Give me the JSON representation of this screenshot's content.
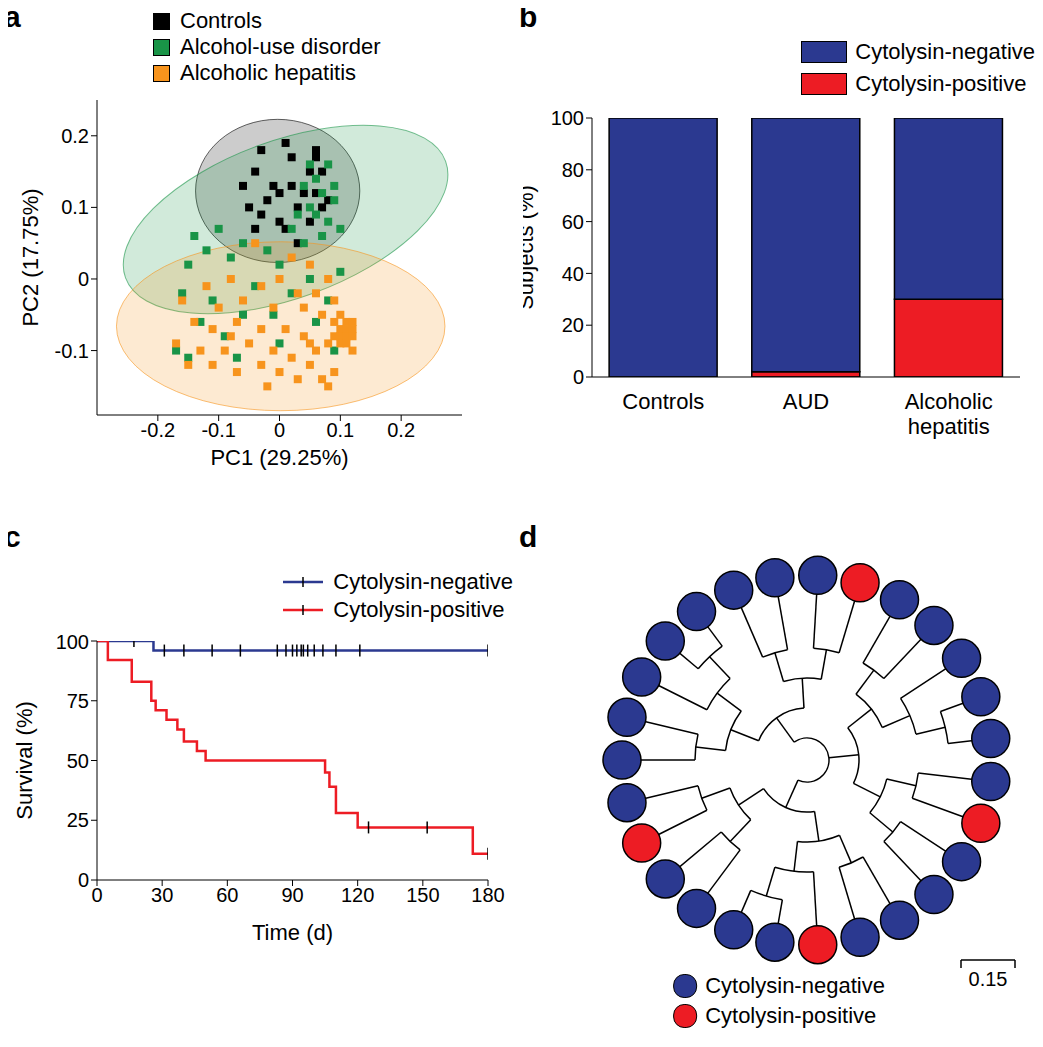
{
  "chart_data": [
    {
      "panel": "a",
      "type": "scatter",
      "marker": "square",
      "xlabel": "PC1 (29.25%)",
      "ylabel": "PC2 (17.75%)",
      "xlim": [
        -0.3,
        0.3
      ],
      "xticks": [
        -0.2,
        -0.1,
        0,
        0.1,
        0.2
      ],
      "ylim": [
        -0.19,
        0.25
      ],
      "yticks": [
        -0.1,
        0,
        0.1,
        0.2
      ],
      "legend": "upper left",
      "series": [
        {
          "name": "Controls",
          "color": "#000000",
          "x": [
            -0.03,
            0.01,
            0.02,
            0.06,
            0.07,
            0.05,
            -0.04,
            -0.06,
            -0.01,
            0,
            0.02,
            0.04,
            0.06,
            0.08,
            0.07,
            -0.05,
            -0.03,
            0,
            0.01,
            -0.04,
            0.03,
            0.05,
            -0.02,
            0.03,
            0.06
          ],
          "y": [
            0.18,
            0.19,
            0.17,
            0.18,
            0.15,
            0.15,
            0.15,
            0.13,
            0.13,
            0.12,
            0.13,
            0.12,
            0.12,
            0.11,
            0.1,
            0.1,
            0.09,
            0.08,
            0.07,
            0.07,
            0.05,
            0.08,
            0.11,
            0.1,
            0.17
          ],
          "ellipse": {
            "center": [
              -0.003,
              0.123
            ],
            "rx": 0.135,
            "ry": 0.1,
            "angle": 0
          }
        },
        {
          "name": "Alcohol-use disorder",
          "color": "#199447",
          "x": [
            0.05,
            0.08,
            0.06,
            0.09,
            0.04,
            0.07,
            0.09,
            0.05,
            0.03,
            0.06,
            0.08,
            0.02,
            0.1,
            0.07,
            0.04,
            -0.1,
            -0.14,
            -0.12,
            -0.08,
            -0.15,
            -0.06,
            -0.02,
            0,
            -0.16,
            -0.11,
            -0.04,
            0.05,
            0.1,
            0.08,
            -0.13,
            -0.09,
            -0.06,
            -0.01,
            0.02,
            -0.17,
            -0.15,
            -0.07,
            0,
            0.06,
            0.09
          ],
          "y": [
            0.16,
            0.16,
            0.14,
            0.13,
            0.13,
            0.12,
            0.11,
            0.1,
            0.09,
            0.09,
            0.08,
            0.07,
            0.07,
            0.06,
            0.05,
            0.07,
            0.06,
            0.04,
            0.03,
            0.02,
            0.05,
            0.04,
            0.02,
            -0.02,
            -0.03,
            -0.01,
            0,
            0.01,
            -0.03,
            -0.06,
            -0.08,
            -0.05,
            -0.05,
            -0.02,
            -0.1,
            -0.11,
            -0.11,
            -0.09,
            -0.06,
            -0.1
          ],
          "ellipse": {
            "center": [
              0.01,
              0.083
            ],
            "rx": 0.28,
            "ry": 0.11,
            "angle": 20
          }
        },
        {
          "name": "Alcoholic hepatitis",
          "color": "#f7941d",
          "x": [
            -0.04,
            0.02,
            0.05,
            0.08,
            -0.08,
            -0.12,
            -0.03,
            0,
            0.03,
            0.06,
            0.09,
            -0.16,
            -0.1,
            -0.06,
            -0.01,
            0.04,
            0.07,
            0.1,
            0.11,
            0.12,
            0.1,
            0.11,
            0.12,
            0.09,
            0.1,
            0.11,
            0.12,
            0.09,
            0.1,
            0.11,
            0.08,
            0.12,
            -0.14,
            -0.11,
            -0.07,
            -0.03,
            0.01,
            0.04,
            0.06,
            -0.17,
            -0.13,
            -0.09,
            -0.05,
            -0.01,
            0.02,
            0.05,
            0.07,
            -0.15,
            -0.11,
            -0.07,
            -0.03,
            0,
            0.03,
            0.08,
            0.09,
            -0.02,
            0.05,
            -0.08
          ],
          "y": [
            0.05,
            0.03,
            0.02,
            0,
            0,
            -0.01,
            -0.01,
            0,
            -0.02,
            -0.02,
            -0.03,
            -0.03,
            -0.04,
            -0.03,
            -0.04,
            -0.04,
            -0.05,
            -0.05,
            -0.06,
            -0.06,
            -0.07,
            -0.07,
            -0.07,
            -0.06,
            -0.08,
            -0.08,
            -0.08,
            -0.08,
            -0.09,
            -0.09,
            -0.09,
            -0.1,
            -0.06,
            -0.07,
            -0.06,
            -0.07,
            -0.07,
            -0.08,
            -0.1,
            -0.09,
            -0.1,
            -0.1,
            -0.09,
            -0.1,
            -0.11,
            -0.12,
            -0.14,
            -0.12,
            -0.12,
            -0.13,
            -0.12,
            -0.13,
            -0.14,
            -0.15,
            -0.13,
            -0.15,
            -0.09,
            -0.08
          ],
          "ellipse": {
            "center": [
              0.002,
              -0.066
            ],
            "rx": 0.27,
            "ry": 0.118,
            "angle": 0
          }
        }
      ]
    },
    {
      "panel": "b",
      "type": "bar",
      "stacked": true,
      "categories": [
        "Controls",
        "AUD",
        "Alcoholic hepatitis"
      ],
      "ylabel": "Subjects (%)",
      "ylim": [
        0,
        100
      ],
      "yticks": [
        0,
        20,
        40,
        60,
        80,
        100
      ],
      "legend": "upper right",
      "series": [
        {
          "name": "Cytolysin-negative",
          "color": "#2b3990",
          "values": [
            100,
            98,
            70
          ]
        },
        {
          "name": "Cytolysin-positive",
          "color": "#ed1c24",
          "values": [
            0,
            2,
            30
          ]
        }
      ]
    },
    {
      "panel": "c",
      "type": "line",
      "line_style": "step",
      "xlabel": "Time (d)",
      "ylabel": "Survival (%)",
      "xlim": [
        0,
        180
      ],
      "xticks": [
        0,
        30,
        60,
        90,
        120,
        150,
        180
      ],
      "ylim": [
        0,
        100
      ],
      "yticks": [
        0,
        25,
        50,
        75,
        100
      ],
      "legend": "upper right",
      "series": [
        {
          "name": "Cytolysin-negative",
          "color": "#2b3990",
          "x": [
            0,
            26,
            180
          ],
          "values": [
            100,
            96,
            96
          ],
          "censored_x": [
            17,
            31,
            40,
            53,
            66,
            83,
            87,
            90,
            92,
            94,
            95,
            97,
            100,
            104,
            110,
            121,
            180
          ],
          "censored_y": [
            100,
            96,
            96,
            96,
            96,
            96,
            96,
            96,
            96,
            96,
            96,
            96,
            96,
            96,
            96,
            96,
            96
          ]
        },
        {
          "name": "Cytolysin-positive",
          "color": "#ed1c24",
          "x": [
            0,
            5,
            16,
            25,
            27,
            32,
            37,
            40,
            46,
            50,
            105,
            107,
            110,
            120,
            173,
            180
          ],
          "values": [
            100,
            92,
            83,
            75,
            71,
            67,
            63,
            58,
            54,
            50,
            45,
            39,
            28,
            22,
            11,
            11
          ],
          "censored_x": [
            125,
            152,
            180
          ],
          "censored_y": [
            22,
            22,
            11
          ]
        }
      ]
    },
    {
      "panel": "d",
      "type": "tree",
      "scale_bar": 0.15,
      "legend": "lower center",
      "series": [
        {
          "name": "Cytolysin-negative",
          "color": "#2b3990"
        },
        {
          "name": "Cytolysin-positive",
          "color": "#ed1c24"
        }
      ],
      "tree": [
        [
          [
            [
              "Cytolysin-negative",
              "Cytolysin-negative"
            ],
            [
              "Cytolysin-negative",
              [
                "Cytolysin-negative",
                "Cytolysin-negative"
              ]
            ]
          ],
          [
            [
              "Cytolysin-negative",
              "Cytolysin-negative"
            ],
            [
              "Cytolysin-negative",
              "Cytolysin-positive"
            ]
          ]
        ],
        [
          [
            [
              "Cytolysin-negative",
              "Cytolysin-negative"
            ],
            [
              "Cytolysin-negative",
              [
                "Cytolysin-negative",
                "Cytolysin-negative"
              ]
            ]
          ],
          [
            [
              "Cytolysin-negative",
              "Cytolysin-positive"
            ],
            [
              "Cytolysin-negative",
              "Cytolysin-negative"
            ]
          ]
        ],
        [
          [
            [
              "Cytolysin-negative",
              "Cytolysin-negative"
            ],
            [
              "Cytolysin-positive",
              [
                "Cytolysin-negative",
                "Cytolysin-negative"
              ]
            ]
          ],
          [
            [
              "Cytolysin-negative",
              "Cytolysin-negative"
            ],
            [
              "Cytolysin-positive",
              "Cytolysin-negative"
            ]
          ]
        ]
      ]
    }
  ]
}
